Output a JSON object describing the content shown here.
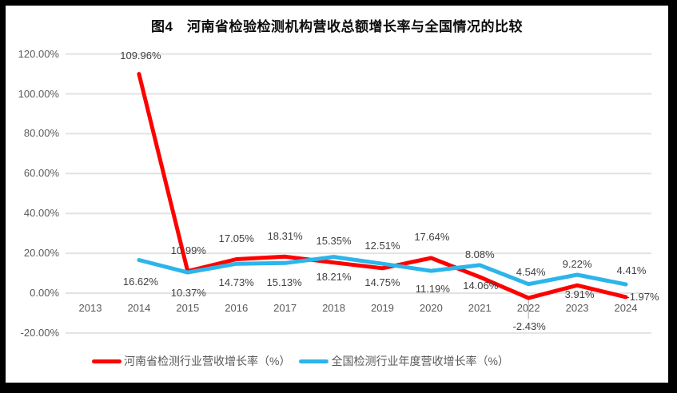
{
  "chart_data": {
    "type": "line",
    "title": "图4　河南省检验检测机构营收总额增长率与全国情况的比较",
    "categories": [
      "2013",
      "2014",
      "2015",
      "2016",
      "2017",
      "2018",
      "2019",
      "2020",
      "2021",
      "2022",
      "2023",
      "2024"
    ],
    "y_axis": {
      "tick_labels": [
        "120.00%",
        "100.00%",
        "80.00%",
        "60.00%",
        "40.00%",
        "20.00%",
        "0.00%",
        "-20.00%"
      ],
      "tick_values": [
        120,
        100,
        80,
        60,
        40,
        20,
        0,
        -20
      ],
      "ylim": [
        -20,
        120
      ],
      "unit": "percent"
    },
    "grid": "horizontal",
    "legend_position": "bottom",
    "series": [
      {
        "id": "henan",
        "name": "河南省检测行业营收增长率（%）",
        "color": "#FF0000",
        "values": [
          null,
          109.96,
          10.99,
          17.05,
          18.31,
          15.35,
          12.51,
          17.64,
          8.08,
          -2.43,
          3.91,
          -1.97
        ],
        "point_labels": [
          null,
          "109.96%",
          "10.99%",
          "17.05%",
          "18.31%",
          "15.35%",
          "12.51%",
          "17.64%",
          "8.08%",
          "-2.43%",
          "3.91%",
          "-1.97%"
        ],
        "label_offsets": [
          null,
          [
            2,
            -23
          ],
          [
            1,
            -26
          ],
          [
            0,
            -25
          ],
          [
            0,
            -25
          ],
          [
            0,
            -27
          ],
          [
            0,
            -28
          ],
          [
            1,
            -26
          ],
          [
            0,
            -28
          ],
          [
            1,
            36
          ],
          [
            3,
            12
          ],
          [
            21,
            0
          ]
        ]
      },
      {
        "id": "national",
        "name": "全国检测行业年度营收增长率（%）",
        "color": "#2CB5EA",
        "values": [
          null,
          16.62,
          10.37,
          14.73,
          15.13,
          18.21,
          14.75,
          11.19,
          14.06,
          4.54,
          9.22,
          4.41
        ],
        "point_labels": [
          null,
          "16.62%",
          "10.37%",
          "14.73%",
          "15.13%",
          "18.21%",
          "14.75%",
          "11.19%",
          "14.06%",
          "4.54%",
          "9.22%",
          "4.41%"
        ],
        "label_offsets": [
          null,
          [
            2,
            27
          ],
          [
            1,
            26
          ],
          [
            0,
            24
          ],
          [
            -1,
            25
          ],
          [
            0,
            25
          ],
          [
            0,
            24
          ],
          [
            2,
            23
          ],
          [
            1,
            26
          ],
          [
            3,
            -15
          ],
          [
            0,
            -13
          ],
          [
            7,
            -17
          ]
        ]
      }
    ],
    "label_leader_lines": [
      {
        "series": 0,
        "index": 9
      }
    ]
  }
}
